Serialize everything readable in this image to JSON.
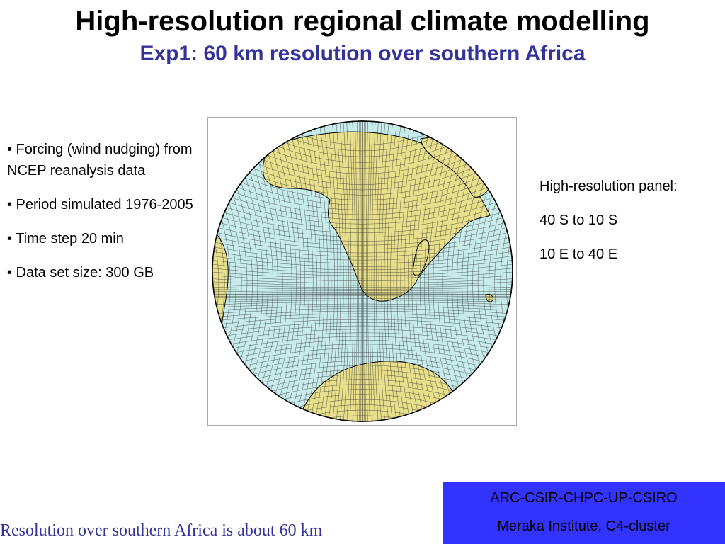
{
  "title": "High-resolution regional climate modelling",
  "subtitle": "Exp1: 60 km resolution over southern Africa",
  "bullets": [
    "• Forcing (wind nudging) from NCEP reanalysis data",
    "• Period simulated 1976-2005",
    "• Time step 20 min",
    "• Data set size: 300 GB"
  ],
  "panel_note": {
    "heading": "High-resolution panel:",
    "lat_range": "40 S to 10 S",
    "lon_range": "10 E to 40 E"
  },
  "footer_text": "Resolution over southern Africa  is about 60 km",
  "credits": {
    "line1": "ARC-CSIR-CHPC-UP-CSIRO",
    "line2": "Meraka Institute, C4-cluster"
  },
  "figure": {
    "description_icon": "globe-grid-map",
    "colors": {
      "ocean": "#c8ecec",
      "land": "#e8e08c",
      "grid": "#1a1a1a",
      "title_accent": "#333399",
      "credit_box": "#3333ff"
    }
  }
}
